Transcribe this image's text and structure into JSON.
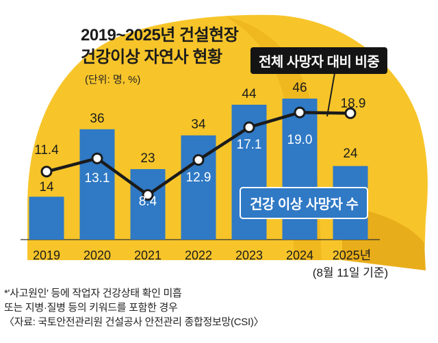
{
  "chart_data": {
    "type": "bar+line",
    "title_lines": [
      "2019~2025년 건설현장",
      "건강이상 자연사 현황"
    ],
    "unit": "(단위: 명, %)",
    "categories": [
      "2019",
      "2020",
      "2021",
      "2022",
      "2023",
      "2024",
      "2025년"
    ],
    "x_note": "(8월 11일 기준)",
    "bar_series": {
      "name": "건강 이상 사망자 수",
      "values": [
        14,
        36,
        23,
        34,
        44,
        46,
        24
      ],
      "value_labels": [
        "14",
        "36",
        "23",
        "34",
        "44",
        "46",
        "24"
      ],
      "color": "#2f79c5"
    },
    "line_series": {
      "name": "전체 사망자 대비 비중",
      "values": [
        11.4,
        13.1,
        8.4,
        12.9,
        17.1,
        19.0,
        18.9
      ],
      "value_labels": [
        "11.4",
        "13.1",
        "8.4",
        "12.9",
        "17.1",
        "19.0",
        "18.9"
      ],
      "color": "#1b1b1b"
    },
    "background_color": "#f7c52a"
  },
  "notes": [
    "*'사고원인' 등에 작업자 건강상태 확인 미흡",
    "또는 지병·질병 등의 키워드를 포함한 경우",
    "〈자료: 국토안전관리원 건설공사 안전관리 종합정보망(CSI)〉"
  ]
}
